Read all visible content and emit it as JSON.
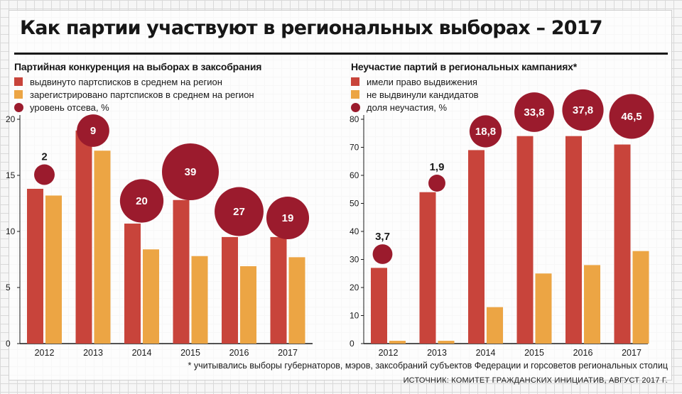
{
  "title": "Как партии участвуют в региональных выборах – 2017",
  "footnote": "* учитывались выборы губернаторов, мэров, заксобраний субъектов Федерации и горсоветов региональных столиц",
  "source": "ИСТОЧНИК: КОМИТЕТ ГРАЖДАНСКИХ ИНИЦИАТИВ, АВГУСТ 2017 Г.",
  "colors": {
    "red": "#c8443b",
    "orange": "#eca544",
    "bubble": "#9b1b2d"
  },
  "chart_data": [
    {
      "type": "bar",
      "title": "Партийная конкуренция на выборах в заксобрания",
      "categories": [
        "2012",
        "2013",
        "2014",
        "2015",
        "2016",
        "2017"
      ],
      "ylim": [
        0,
        20
      ],
      "yticks": [
        "0",
        "5",
        "10",
        "15",
        "20"
      ],
      "legend": "top-left",
      "series": [
        {
          "name": "выдвинуто партсписков в среднем на регион",
          "values": [
            13.8,
            19.0,
            10.7,
            12.8,
            9.5,
            9.5
          ]
        },
        {
          "name": "зарегистрировано партсписков в среднем на регион",
          "values": [
            13.2,
            17.2,
            8.4,
            7.8,
            6.9,
            7.7
          ]
        }
      ],
      "bubbles": {
        "name": "уровень отсева, %",
        "values": [
          2,
          9,
          20,
          39,
          27,
          19
        ],
        "labels": [
          "2",
          "9",
          "20",
          "39",
          "27",
          "19"
        ]
      }
    },
    {
      "type": "bar",
      "title": "Неучастие партий в региональных кампаниях*",
      "categories": [
        "2012",
        "2013",
        "2014",
        "2015",
        "2016",
        "2017"
      ],
      "ylim": [
        0,
        80
      ],
      "yticks": [
        "0",
        "10",
        "20",
        "30",
        "40",
        "50",
        "60",
        "70",
        "80"
      ],
      "legend": "top-left",
      "series": [
        {
          "name": "имели право выдвижения",
          "values": [
            27,
            54,
            69,
            74,
            74,
            71
          ]
        },
        {
          "name": "не выдвинули кандидатов",
          "values": [
            1,
            1,
            13,
            25,
            28,
            33
          ]
        }
      ],
      "bubbles": {
        "name": "доля неучастия, %",
        "values": [
          3.7,
          1.9,
          18.8,
          33.8,
          37.8,
          46.5
        ],
        "labels": [
          "3,7",
          "1,9",
          "18,8",
          "33,8",
          "37,8",
          "46,5"
        ]
      }
    }
  ]
}
